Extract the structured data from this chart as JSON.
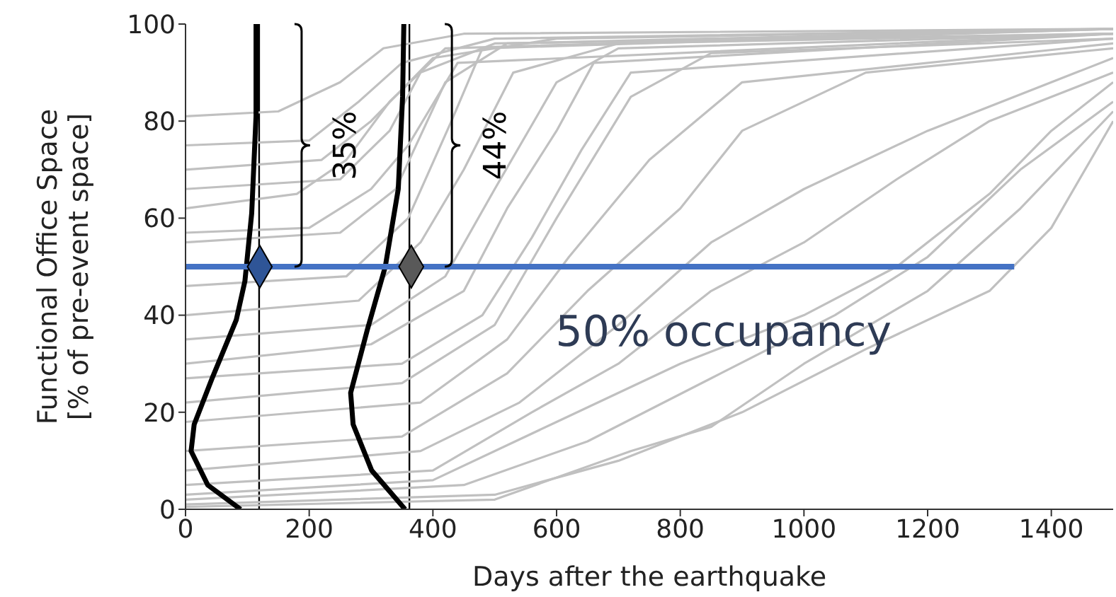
{
  "chart_data": {
    "type": "line",
    "xlabel": "Days after the earthquake",
    "ylabel": "Functional Office Space\n[% of pre-event space]",
    "xlim": [
      0,
      1500
    ],
    "xticks": [
      0,
      200,
      400,
      600,
      800,
      1000,
      1200,
      1400
    ],
    "ylim": [
      0,
      100
    ],
    "yticks": [
      0,
      20,
      40,
      60,
      80,
      100
    ],
    "marker": "none",
    "line_style": "solid",
    "series": [
      {
        "color": "#c0c0c0",
        "x": [
          0,
          150,
          250,
          320,
          450,
          1500
        ],
        "values": [
          81,
          82,
          88,
          95,
          98,
          99
        ]
      },
      {
        "color": "#c0c0c0",
        "x": [
          0,
          200,
          280,
          350,
          500,
          1500
        ],
        "values": [
          75,
          76,
          84,
          92,
          97,
          99
        ]
      },
      {
        "color": "#c0c0c0",
        "x": [
          0,
          220,
          300,
          400,
          600,
          1500
        ],
        "values": [
          70,
          72,
          80,
          93,
          97,
          99
        ]
      },
      {
        "color": "#c0c0c0",
        "x": [
          0,
          250,
          330,
          380,
          500,
          1500
        ],
        "values": [
          66,
          68,
          78,
          90,
          96,
          98
        ]
      },
      {
        "color": "#c0c0c0",
        "x": [
          0,
          180,
          260,
          330,
          420,
          1500
        ],
        "values": [
          62,
          65,
          72,
          84,
          95,
          99
        ]
      },
      {
        "color": "#c0c0c0",
        "x": [
          0,
          200,
          300,
          360,
          440,
          1500
        ],
        "values": [
          57,
          58,
          66,
          75,
          92,
          98
        ]
      },
      {
        "color": "#c0c0c0",
        "x": [
          0,
          250,
          340,
          420,
          520,
          1500
        ],
        "values": [
          55,
          57,
          66,
          88,
          96,
          99
        ]
      },
      {
        "color": "#c0c0c0",
        "x": [
          0,
          260,
          360,
          430,
          480,
          1500
        ],
        "values": [
          46,
          48,
          60,
          80,
          95,
          99
        ]
      },
      {
        "color": "#c0c0c0",
        "x": [
          0,
          280,
          380,
          450,
          530,
          700,
          1500
        ],
        "values": [
          40,
          43,
          55,
          70,
          90,
          96,
          98
        ]
      },
      {
        "color": "#c0c0c0",
        "x": [
          0,
          300,
          420,
          500,
          600,
          700,
          1500
        ],
        "values": [
          35,
          38,
          48,
          66,
          88,
          95,
          98
        ]
      },
      {
        "color": "#c0c0c0",
        "x": [
          0,
          300,
          450,
          520,
          600,
          660,
          1500
        ],
        "values": [
          30,
          34,
          45,
          62,
          78,
          92,
          98
        ]
      },
      {
        "color": "#c0c0c0",
        "x": [
          0,
          350,
          480,
          560,
          640,
          720,
          1500
        ],
        "values": [
          27,
          30,
          40,
          56,
          74,
          90,
          97
        ]
      },
      {
        "color": "#c0c0c0",
        "x": [
          0,
          350,
          500,
          600,
          720,
          850,
          1500
        ],
        "values": [
          22,
          26,
          38,
          60,
          85,
          94,
          97
        ]
      },
      {
        "color": "#c0c0c0",
        "x": [
          0,
          380,
          520,
          620,
          750,
          900,
          1500
        ],
        "values": [
          18,
          22,
          35,
          52,
          72,
          88,
          96
        ]
      },
      {
        "color": "#c0c0c0",
        "x": [
          0,
          350,
          520,
          650,
          800,
          900,
          1100,
          1500
        ],
        "values": [
          12,
          15,
          28,
          45,
          62,
          78,
          90,
          95
        ]
      },
      {
        "color": "#c0c0c0",
        "x": [
          0,
          380,
          540,
          700,
          850,
          1000,
          1200,
          1500
        ],
        "values": [
          8,
          12,
          22,
          38,
          55,
          66,
          78,
          93
        ]
      },
      {
        "color": "#c0c0c0",
        "x": [
          0,
          400,
          560,
          700,
          850,
          1000,
          1150,
          1300,
          1500
        ],
        "values": [
          5,
          8,
          20,
          30,
          45,
          55,
          68,
          80,
          90
        ]
      },
      {
        "color": "#c0c0c0",
        "x": [
          0,
          400,
          600,
          800,
          1000,
          1150,
          1300,
          1400,
          1500
        ],
        "values": [
          3,
          6,
          18,
          30,
          40,
          50,
          65,
          78,
          88
        ]
      },
      {
        "color": "#c0c0c0",
        "x": [
          0,
          450,
          650,
          850,
          1050,
          1200,
          1350,
          1500
        ],
        "values": [
          2,
          5,
          14,
          27,
          40,
          52,
          70,
          84
        ]
      },
      {
        "color": "#c0c0c0",
        "x": [
          0,
          500,
          700,
          900,
          1100,
          1300,
          1400,
          1500
        ],
        "values": [
          1,
          3,
          10,
          20,
          33,
          45,
          58,
          80
        ]
      },
      {
        "color": "#c0c0c0",
        "x": [
          0,
          500,
          720,
          850,
          1000,
          1200,
          1350,
          1500
        ],
        "values": [
          0.5,
          2,
          12,
          17,
          30,
          45,
          62,
          82
        ]
      },
      {
        "color": "#000000",
        "x": [
          89,
          36,
          9,
          14,
          43,
          82,
          96,
          107,
          114,
          114
        ],
        "values": [
          0,
          5,
          12,
          17.5,
          27,
          39,
          47,
          61,
          81,
          100
        ]
      },
      {
        "color": "#000000",
        "x": [
          355,
          301,
          271,
          267,
          294,
          323,
          344,
          351,
          353
        ],
        "values": [
          0,
          8,
          17.5,
          24,
          37,
          50,
          66,
          85,
          100
        ]
      },
      {
        "color": "#4472c4",
        "x": [
          0,
          1340
        ],
        "values": [
          50,
          50
        ]
      },
      {
        "type": "scatter",
        "marker": "diamond",
        "x": [
          120,
          365
        ],
        "values": [
          50,
          50
        ],
        "colors": [
          "#2f5597",
          "#595959"
        ]
      }
    ],
    "ref_lines": [
      {
        "axis": "x",
        "value": 119,
        "color": "#000000"
      },
      {
        "axis": "x",
        "value": 362,
        "color": "#000000"
      }
    ],
    "annotations": [
      "35%",
      "44%",
      "50% occupancy"
    ]
  }
}
